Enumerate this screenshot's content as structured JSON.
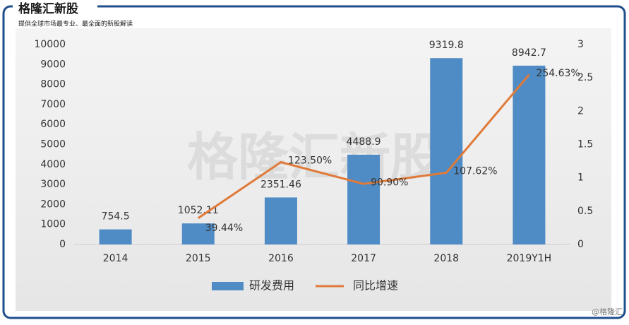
{
  "header": {
    "title": "格隆汇新股",
    "subtitle": "提供全球市场最专业、最全面的新股解读"
  },
  "watermark": "格隆汇新股",
  "credit": "@格隆汇",
  "chart_data": {
    "type": "bar",
    "categories": [
      "2014",
      "2015",
      "2016",
      "2017",
      "2018",
      "2019Y1H"
    ],
    "series": [
      {
        "name": "研发费用",
        "color": "#4f8bc4",
        "values": [
          754.5,
          1052.11,
          2351.46,
          4488.9,
          9319.8,
          8942.7
        ]
      },
      {
        "name": "同比增速",
        "color": "#e07a38",
        "type": "line",
        "axis": "y2",
        "values": [
          null,
          0.3944,
          1.235,
          0.909,
          1.0762,
          2.5463
        ],
        "value_labels": [
          null,
          "39.44%",
          "123.50%",
          "90.90%",
          "107.62%",
          "254.63%"
        ]
      }
    ],
    "ylim": [
      0,
      10000
    ],
    "yticks": [
      0,
      1000,
      2000,
      3000,
      4000,
      5000,
      6000,
      7000,
      8000,
      9000,
      10000
    ],
    "y2lim": [
      0,
      3
    ],
    "y2ticks": [
      0,
      0.5,
      1,
      1.5,
      2,
      2.5,
      3
    ],
    "legend": "bottom"
  }
}
